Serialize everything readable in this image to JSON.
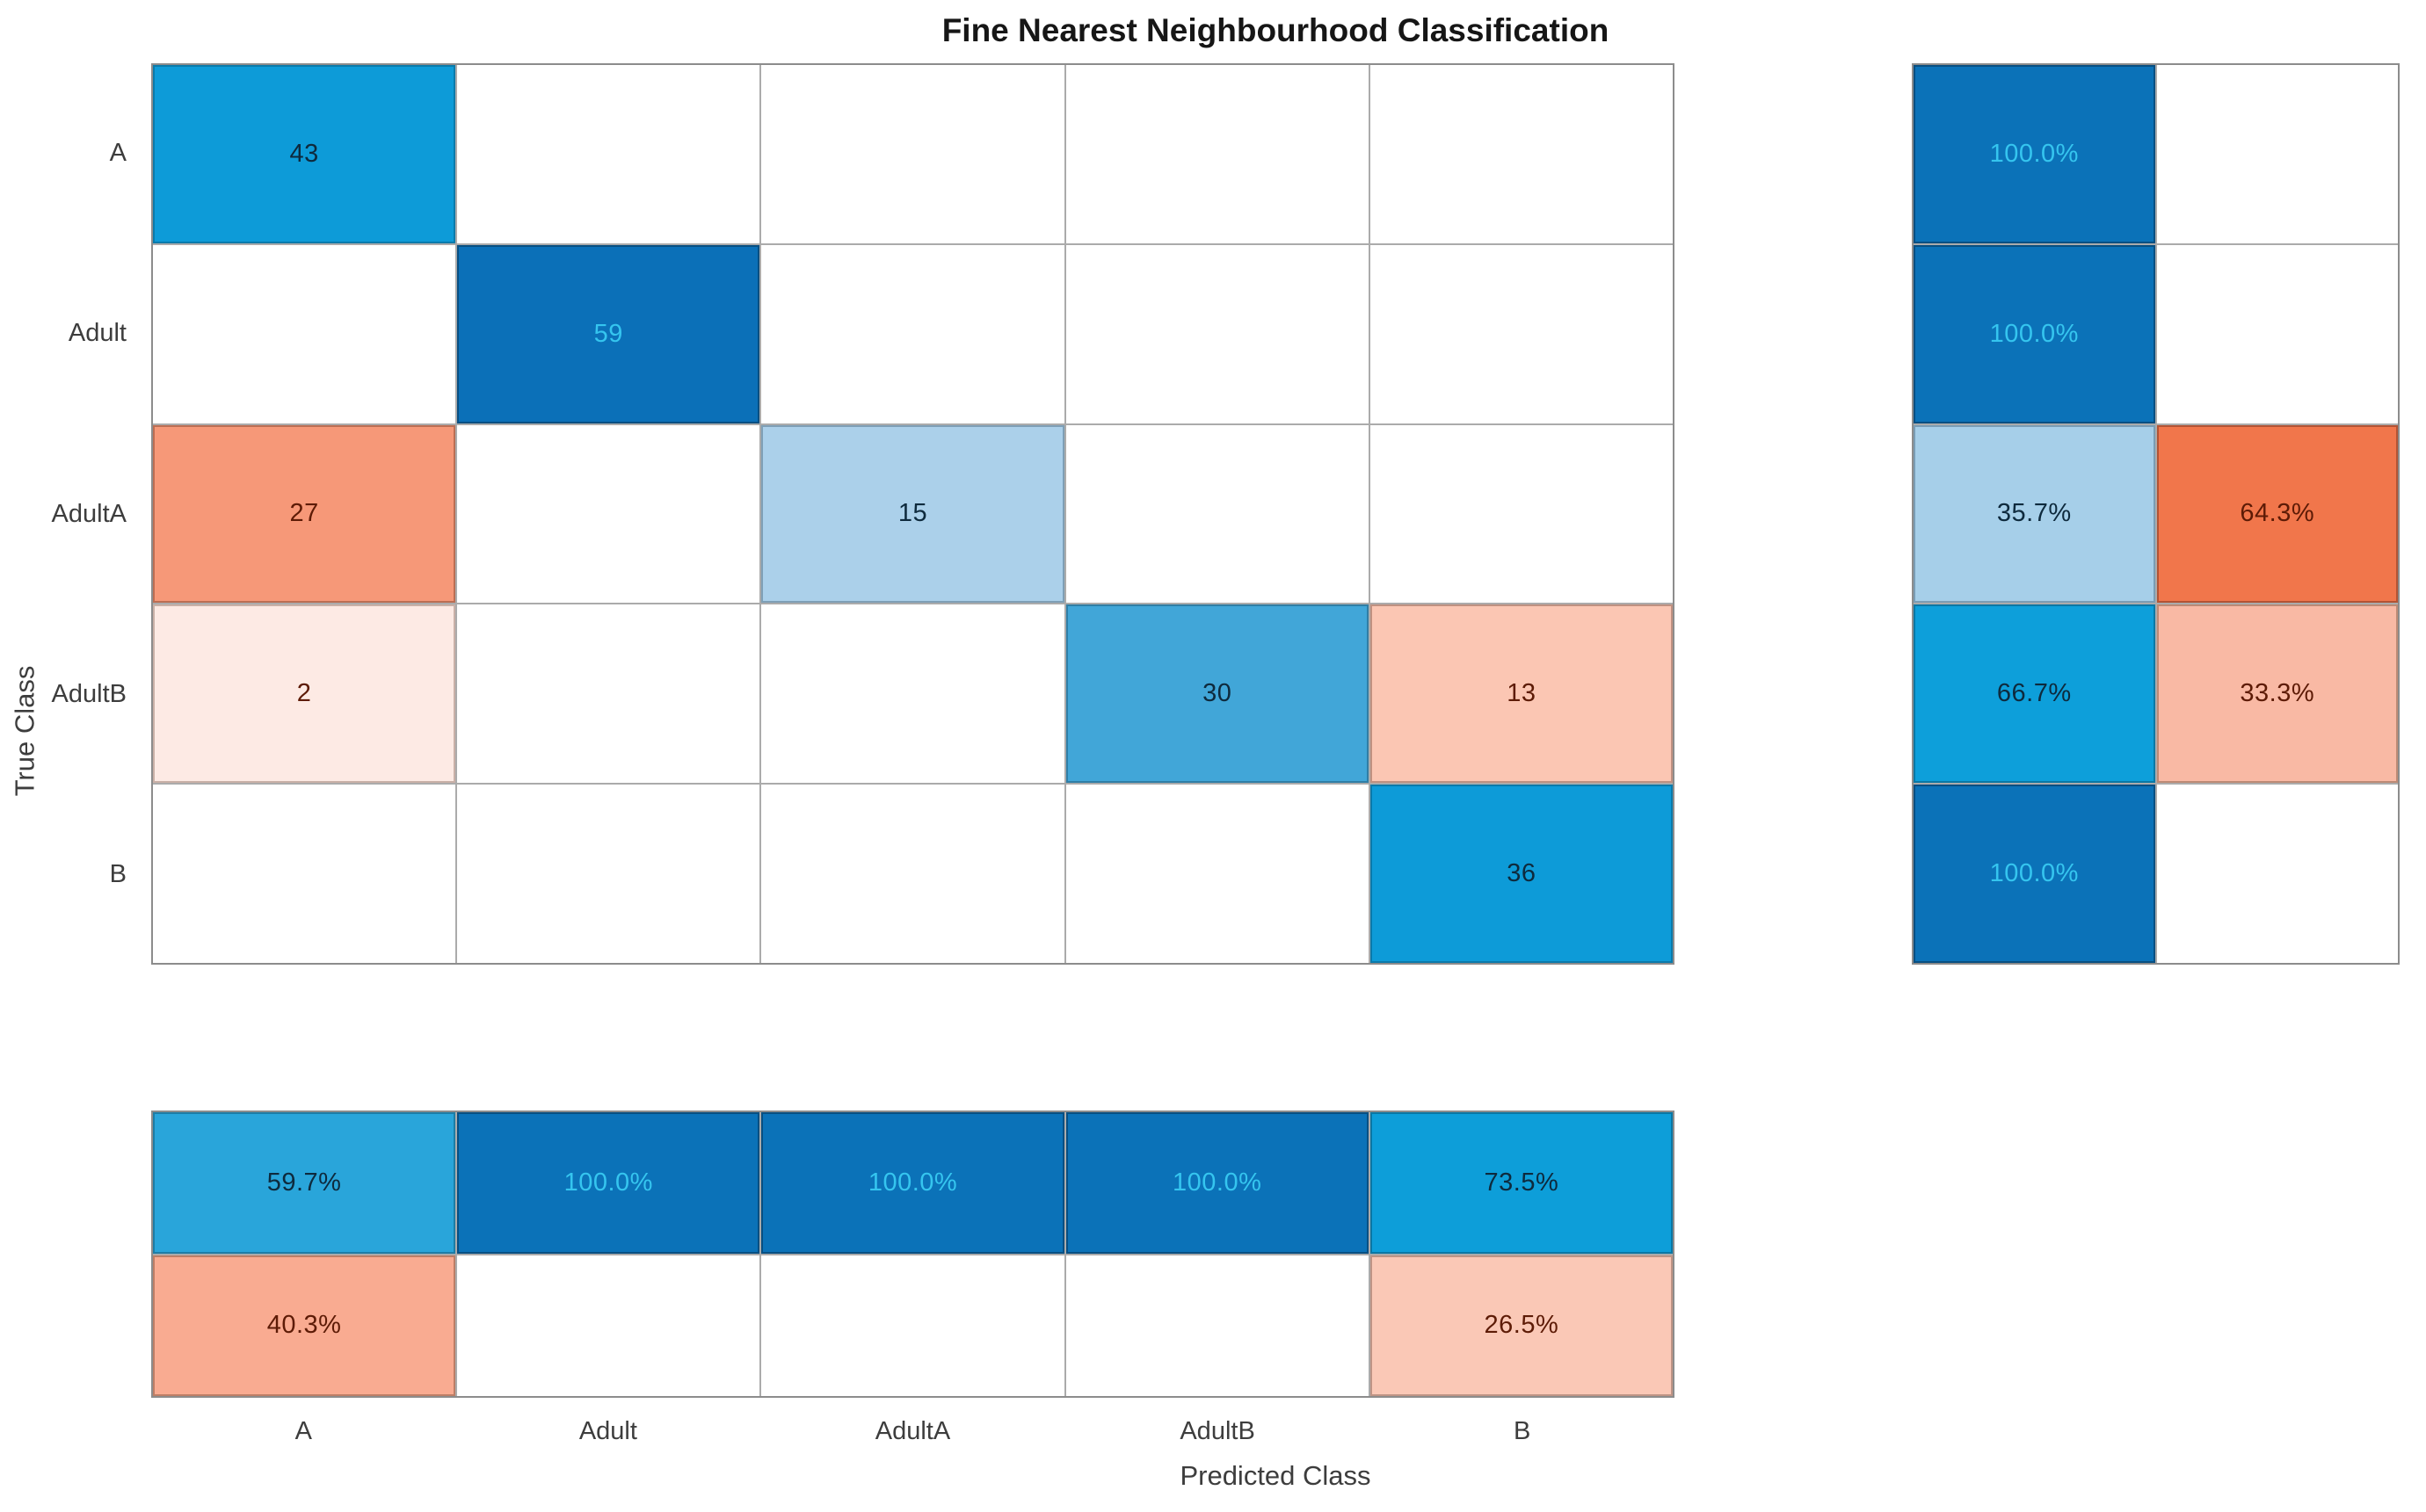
{
  "palette": {
    "background": "#ffffff",
    "gridline": "#ababab",
    "panel_border": "#8c8c8c",
    "title_color": "#161616",
    "tick_label_color": "#3d3d3d",
    "diagonal_dark_blue": "#0b72b8",
    "diagonal_bright_blue": "#0d9bd8",
    "offdiagonal_orange": "#f1764b",
    "light_text_on_dark_blue": "#35c5ef",
    "dark_text_on_blue": "#0e2a3d",
    "dark_text_on_orange": "#5d1b06"
  },
  "chart_data": {
    "type": "heatmap",
    "title": "Fine Nearest Neighbourhood Classification",
    "xlabel": "Predicted Class",
    "ylabel": "True Class",
    "categories": [
      "A",
      "Adult",
      "AdultA",
      "AdultB",
      "B"
    ],
    "counts_matrix": [
      [
        43,
        0,
        0,
        0,
        0
      ],
      [
        0,
        59,
        0,
        0,
        0
      ],
      [
        27,
        0,
        15,
        0,
        0
      ],
      [
        2,
        0,
        0,
        30,
        13
      ],
      [
        0,
        0,
        0,
        0,
        36
      ]
    ],
    "row_normalized_pct": {
      "true_positive_rate": [
        100.0,
        100.0,
        35.7,
        66.7,
        100.0
      ],
      "false_negative_rate": [
        null,
        null,
        64.3,
        33.3,
        null
      ]
    },
    "col_normalized_pct": {
      "positive_predictive_value": [
        59.7,
        100.0,
        100.0,
        100.0,
        73.5
      ],
      "false_discovery_rate": [
        40.3,
        null,
        null,
        null,
        26.5
      ]
    },
    "main_cells": [
      [
        {
          "v": "43",
          "bg": "#0d9bd8",
          "fg": "#0e2a3d",
          "bd": "#0a7aab"
        },
        null,
        null,
        null,
        null
      ],
      [
        null,
        {
          "v": "59",
          "bg": "#0b70b8",
          "fg": "#35c5ef",
          "bd": "#084f82"
        },
        null,
        null,
        null
      ],
      [
        {
          "v": "27",
          "bg": "#f69878",
          "fg": "#5d1b06",
          "bd": "#bc6e53"
        },
        null,
        {
          "v": "15",
          "bg": "#abd0ea",
          "fg": "#0e2a3d",
          "bd": "#7e9fb6"
        },
        null,
        null
      ],
      [
        {
          "v": "2",
          "bg": "#fdeae4",
          "fg": "#5d1b06",
          "bd": "#c9b0a7"
        },
        null,
        null,
        {
          "v": "30",
          "bg": "#41a6d8",
          "fg": "#0e2a3d",
          "bd": "#2f7ea6"
        },
        {
          "v": "13",
          "bg": "#fbc6b3",
          "fg": "#5d1b06",
          "bd": "#c09181"
        }
      ],
      [
        null,
        null,
        null,
        null,
        {
          "v": "36",
          "bg": "#0d9bd8",
          "fg": "#0e2a3d",
          "bd": "#0a7aab"
        }
      ]
    ],
    "row_summary_cells": [
      [
        {
          "v": "100.0%",
          "bg": "#0b72b8",
          "fg": "#35c5ef",
          "bd": "#084f82"
        },
        null
      ],
      [
        {
          "v": "100.0%",
          "bg": "#0b72b8",
          "fg": "#35c5ef",
          "bd": "#084f82"
        },
        null
      ],
      [
        {
          "v": "35.7%",
          "bg": "#a6cfe9",
          "fg": "#0e2a3d",
          "bd": "#7a9db5"
        },
        {
          "v": "64.3%",
          "bg": "#f1764b",
          "fg": "#5d1b06",
          "bd": "#b35334"
        }
      ],
      [
        {
          "v": "66.7%",
          "bg": "#0d9fda",
          "fg": "#0e2a3d",
          "bd": "#0a78a5"
        },
        {
          "v": "33.3%",
          "bg": "#f9b9a4",
          "fg": "#5d1b06",
          "bd": "#bd8a75"
        }
      ],
      [
        {
          "v": "100.0%",
          "bg": "#0b72b8",
          "fg": "#35c5ef",
          "bd": "#084f82"
        },
        null
      ]
    ],
    "col_summary_cells": [
      [
        {
          "v": "59.7%",
          "bg": "#29a5da",
          "fg": "#0e2a3d",
          "bd": "#1d7da6"
        },
        {
          "v": "100.0%",
          "bg": "#0b72b8",
          "fg": "#35c5ef",
          "bd": "#084f82"
        },
        {
          "v": "100.0%",
          "bg": "#0b72b8",
          "fg": "#35c5ef",
          "bd": "#084f82"
        },
        {
          "v": "100.0%",
          "bg": "#0b72b8",
          "fg": "#35c5ef",
          "bd": "#084f82"
        },
        {
          "v": "73.5%",
          "bg": "#0d9ed9",
          "fg": "#0e2a3d",
          "bd": "#0a77a4"
        }
      ],
      [
        {
          "v": "40.3%",
          "bg": "#f9ab91",
          "fg": "#5d1b06",
          "bd": "#bd7e66"
        },
        null,
        null,
        null,
        {
          "v": "26.5%",
          "bg": "#fac8b6",
          "fg": "#5d1b06",
          "bd": "#be9485"
        }
      ]
    ]
  }
}
